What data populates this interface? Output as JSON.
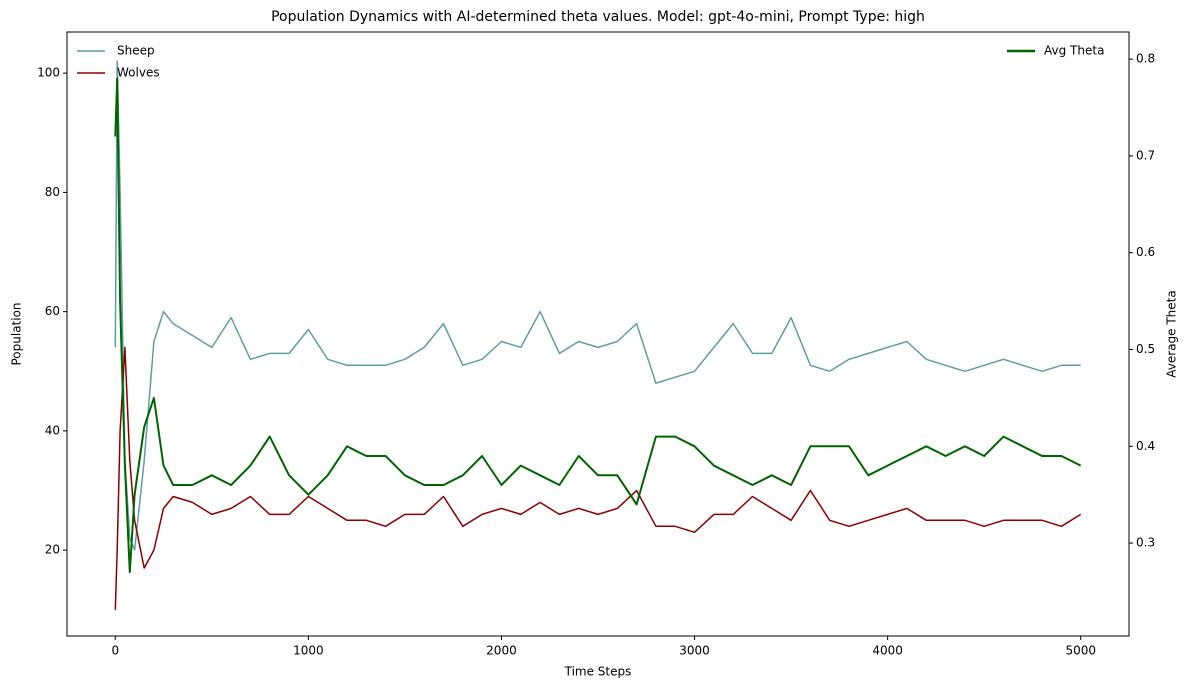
{
  "chart_data": {
    "type": "line",
    "title": "Population Dynamics with AI-determined theta values. Model: gpt-4o-mini, Prompt Type: high",
    "x_label": "Time Steps",
    "y_label": "Population",
    "y2_label": "Average Theta",
    "x": [
      0,
      10,
      25,
      50,
      75,
      100,
      150,
      200,
      250,
      300,
      400,
      500,
      600,
      700,
      800,
      900,
      1000,
      1100,
      1200,
      1300,
      1400,
      1500,
      1600,
      1700,
      1800,
      1900,
      2000,
      2100,
      2200,
      2300,
      2400,
      2500,
      2600,
      2700,
      2800,
      2900,
      3000,
      3100,
      3200,
      3300,
      3400,
      3500,
      3600,
      3700,
      3800,
      3900,
      4000,
      4100,
      4200,
      4300,
      4400,
      4500,
      4600,
      4700,
      4800,
      4900,
      5000
    ],
    "series": [
      {
        "name": "Sheep",
        "color": "#5f9ea0",
        "axis": "y",
        "values": [
          54,
          102,
          80,
          35,
          22,
          20,
          35,
          55,
          60,
          58,
          56,
          54,
          59,
          52,
          53,
          53,
          57,
          52,
          51,
          51,
          51,
          52,
          54,
          58,
          51,
          52,
          55,
          54,
          60,
          53,
          55,
          54,
          55,
          58,
          48,
          49,
          50,
          54,
          58,
          53,
          53,
          59,
          51,
          50,
          52,
          53,
          54,
          55,
          52,
          51,
          50,
          51,
          52,
          51,
          50,
          51,
          51
        ]
      },
      {
        "name": "Wolves",
        "color": "#8b0000",
        "axis": "y",
        "values": [
          10,
          20,
          40,
          54,
          35,
          25,
          17,
          20,
          27,
          29,
          28,
          26,
          27,
          29,
          26,
          26,
          29,
          27,
          25,
          25,
          24,
          26,
          26,
          29,
          24,
          26,
          27,
          26,
          28,
          26,
          27,
          26,
          27,
          30,
          24,
          24,
          23,
          26,
          26,
          29,
          27,
          25,
          30,
          25,
          24,
          25,
          26,
          27,
          25,
          25,
          25,
          24,
          25,
          25,
          25,
          24,
          26
        ]
      },
      {
        "name": "Avg Theta",
        "color": "#006400",
        "axis": "y2",
        "values": [
          0.72,
          0.78,
          0.55,
          0.38,
          0.27,
          0.35,
          0.42,
          0.45,
          0.38,
          0.36,
          0.36,
          0.37,
          0.36,
          0.38,
          0.41,
          0.37,
          0.35,
          0.37,
          0.4,
          0.39,
          0.39,
          0.37,
          0.36,
          0.36,
          0.37,
          0.39,
          0.36,
          0.38,
          0.37,
          0.36,
          0.39,
          0.37,
          0.37,
          0.34,
          0.41,
          0.41,
          0.4,
          0.38,
          0.37,
          0.36,
          0.37,
          0.36,
          0.4,
          0.4,
          0.4,
          0.37,
          0.38,
          0.39,
          0.4,
          0.39,
          0.4,
          0.39,
          0.41,
          0.4,
          0.39,
          0.39,
          0.38
        ]
      }
    ],
    "xlim": [
      -250,
      5250
    ],
    "xticks": [
      0,
      1000,
      2000,
      3000,
      4000,
      5000
    ],
    "ylim": [
      5.6,
      106.9
    ],
    "yticks": [
      20,
      40,
      60,
      80,
      100
    ],
    "y2lim": [
      0.204,
      0.828
    ],
    "y2ticks": [
      0.3,
      0.4,
      0.5,
      0.6,
      0.7,
      0.8
    ],
    "legend_loc": "upper left",
    "y2_legend_loc": "upper right",
    "grid": false
  }
}
